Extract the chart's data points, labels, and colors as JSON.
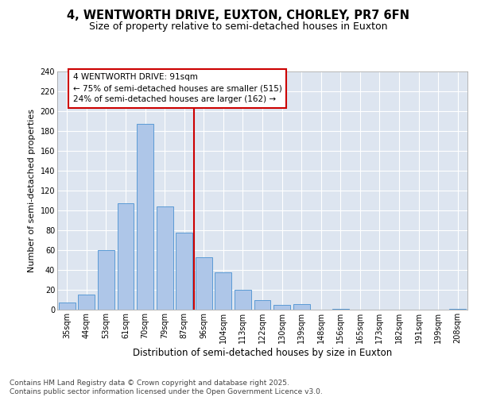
{
  "title1": "4, WENTWORTH DRIVE, EUXTON, CHORLEY, PR7 6FN",
  "title2": "Size of property relative to semi-detached houses in Euxton",
  "xlabel": "Distribution of semi-detached houses by size in Euxton",
  "ylabel": "Number of semi-detached properties",
  "categories": [
    "35sqm",
    "44sqm",
    "53sqm",
    "61sqm",
    "70sqm",
    "79sqm",
    "87sqm",
    "96sqm",
    "104sqm",
    "113sqm",
    "122sqm",
    "130sqm",
    "139sqm",
    "148sqm",
    "156sqm",
    "165sqm",
    "173sqm",
    "182sqm",
    "191sqm",
    "199sqm",
    "208sqm"
  ],
  "values": [
    7,
    15,
    60,
    107,
    187,
    104,
    78,
    53,
    38,
    20,
    10,
    5,
    6,
    0,
    1,
    0,
    0,
    0,
    0,
    0,
    1
  ],
  "bar_color": "#aec6e8",
  "bar_edge_color": "#5b9bd5",
  "vline_color": "#cc0000",
  "box_color": "#cc0000",
  "background_color": "#dde5f0",
  "ylim": [
    0,
    240
  ],
  "yticks": [
    0,
    20,
    40,
    60,
    80,
    100,
    120,
    140,
    160,
    180,
    200,
    220,
    240
  ],
  "footer_line1": "Contains HM Land Registry data © Crown copyright and database right 2025.",
  "footer_line2": "Contains public sector information licensed under the Open Government Licence v3.0.",
  "box_text_line1": "4 WENTWORTH DRIVE: 91sqm",
  "box_text_line2": "← 75% of semi-detached houses are smaller (515)",
  "box_text_line3": "24% of semi-detached houses are larger (162) →",
  "title1_fontsize": 10.5,
  "title2_fontsize": 9,
  "xlabel_fontsize": 8.5,
  "ylabel_fontsize": 8,
  "tick_fontsize": 7,
  "footer_fontsize": 6.5,
  "annotation_fontsize": 7.5
}
